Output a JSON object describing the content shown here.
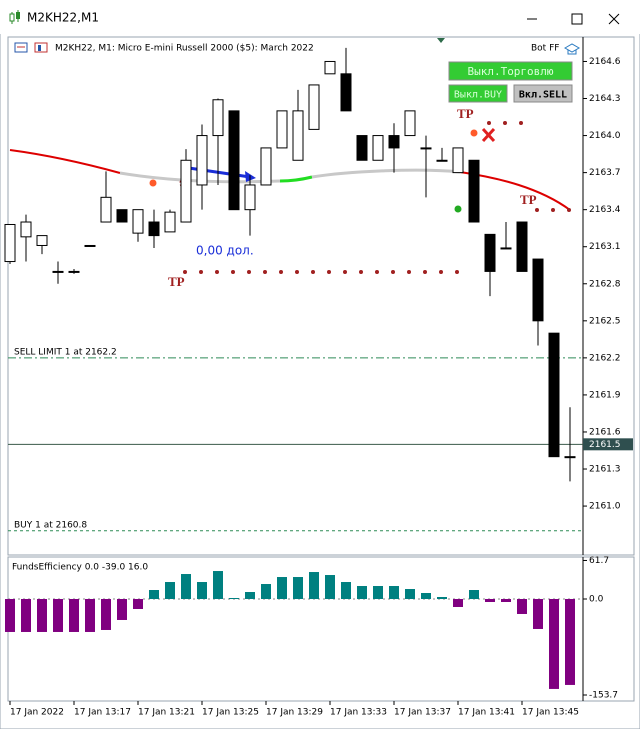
{
  "window": {
    "title": "M2KH22,M1"
  },
  "chart_data": [
    {
      "type": "candlestick",
      "title": "M2KH22, M1:  Micro E-mini Russell 2000 ($5): March 2022",
      "badge": "Bot FF",
      "categories": [
        "17 Jan 2022",
        null,
        null,
        null,
        "17 Jan 13:17",
        null,
        null,
        null,
        "17 Jan 13:21",
        null,
        null,
        null,
        "17 Jan 13:25",
        null,
        null,
        null,
        "17 Jan 13:29",
        null,
        null,
        null,
        "17 Jan 13:33",
        null,
        null,
        null,
        "17 Jan 13:37",
        null,
        null,
        null,
        "17 Jan 13:41",
        null,
        null,
        null,
        "17 Jan 13:45",
        null,
        null,
        null
      ],
      "open": [
        2162.98,
        2163.18,
        2163.11,
        2162.9,
        2162.9,
        2163.11,
        2163.3,
        2163.4,
        2163.21,
        2163.3,
        2163.22,
        2163.3,
        2163.6,
        2164.0,
        2164.2,
        2163.4,
        2163.6,
        2163.9,
        2163.8,
        2164.05,
        2164.5,
        2164.5,
        2164.0,
        2163.8,
        2164.0,
        2164.0,
        2163.9,
        2163.8,
        2163.7,
        2163.8,
        2163.2,
        2163.09,
        2163.3,
        2163.0,
        2162.4,
        2161.4
      ],
      "high": [
        2163.28,
        2163.36,
        2163.19,
        2162.98,
        2162.92,
        2163.11,
        2163.71,
        2163.4,
        2163.4,
        2163.4,
        2163.4,
        2163.89,
        2164.09,
        2164.3,
        2164.2,
        2163.68,
        2163.9,
        2164.2,
        2164.37,
        2164.41,
        2164.6,
        2164.71,
        2164.0,
        2164.0,
        2164.1,
        2164.2,
        2164.0,
        2163.9,
        2163.9,
        2163.8,
        2163.2,
        2163.3,
        2163.3,
        2163.0,
        2162.4,
        2161.8
      ],
      "low": [
        2162.96,
        2162.98,
        2163.04,
        2162.8,
        2162.88,
        2163.11,
        2163.3,
        2163.3,
        2163.14,
        2163.09,
        2163.22,
        2163.3,
        2163.4,
        2163.6,
        2163.4,
        2163.19,
        2163.6,
        2163.9,
        2163.8,
        2164.05,
        2164.5,
        2164.2,
        2163.8,
        2163.8,
        2163.7,
        2164.0,
        2163.5,
        2163.8,
        2163.7,
        2163.3,
        2162.7,
        2163.09,
        2162.9,
        2162.3,
        2161.4,
        2161.2
      ],
      "close": [
        2163.28,
        2163.3,
        2163.19,
        2162.9,
        2162.9,
        2163.11,
        2163.5,
        2163.3,
        2163.4,
        2163.19,
        2163.38,
        2163.8,
        2164.0,
        2164.29,
        2163.4,
        2163.6,
        2163.9,
        2164.2,
        2164.2,
        2164.41,
        2164.6,
        2164.2,
        2163.8,
        2164.0,
        2163.9,
        2164.2,
        2163.9,
        2163.8,
        2163.9,
        2163.3,
        2162.9,
        2163.09,
        2162.9,
        2162.5,
        2161.4,
        2161.4
      ],
      "up_color": "#ffffff",
      "down_color": "#000000",
      "ylim": [
        2160.62,
        2164.79
      ],
      "yticks": [
        2164.6,
        2164.3,
        {
          "value": 2164,
          "label": "2164.0"
        },
        2163.7,
        2163.4,
        2163.1,
        2162.8,
        2162.5,
        2162.2,
        2161.9,
        2161.6,
        2161.3,
        {
          "value": 2161,
          "label": "2161.0"
        }
      ],
      "current_price": 2161.5,
      "hlines": [
        {
          "label": "SELL LIMIT 1 at 2162.2",
          "value": 2162.2,
          "color": "#2e8b57"
        },
        {
          "label": "BUY 1 at 2160.8",
          "value": 2160.8,
          "color": "#2e8b57"
        }
      ],
      "buttons": [
        "Выкл.Торговлю",
        "Выкл.BUY",
        "Вкл.SELL"
      ],
      "annotations": [
        "0,00 дол.",
        "TP",
        "TP",
        "TP"
      ]
    },
    {
      "type": "bar",
      "title": "FundsEfficiency 0.0 -39.0 16.0",
      "values": [
        -52.8,
        -52.8,
        -52.8,
        -52.8,
        -52.8,
        -52.8,
        -49.6,
        -33.6,
        -16,
        14.4,
        27.2,
        40,
        27.2,
        44.8,
        1.6,
        11.2,
        24,
        35.2,
        35.2,
        43.2,
        38.4,
        27.2,
        20.8,
        20.8,
        20.8,
        16,
        9.6,
        3.2,
        -12.8,
        14.4,
        -4.8,
        -4.8,
        -24,
        -48,
        -144,
        -137.6
      ],
      "pos_color": "#008080",
      "neg_color": "#800080",
      "ylim": [
        -161.7,
        65.64
      ],
      "yticks": [
        61.7,
        {
          "value": 0,
          "label": "0.0"
        },
        -153.7
      ]
    }
  ]
}
